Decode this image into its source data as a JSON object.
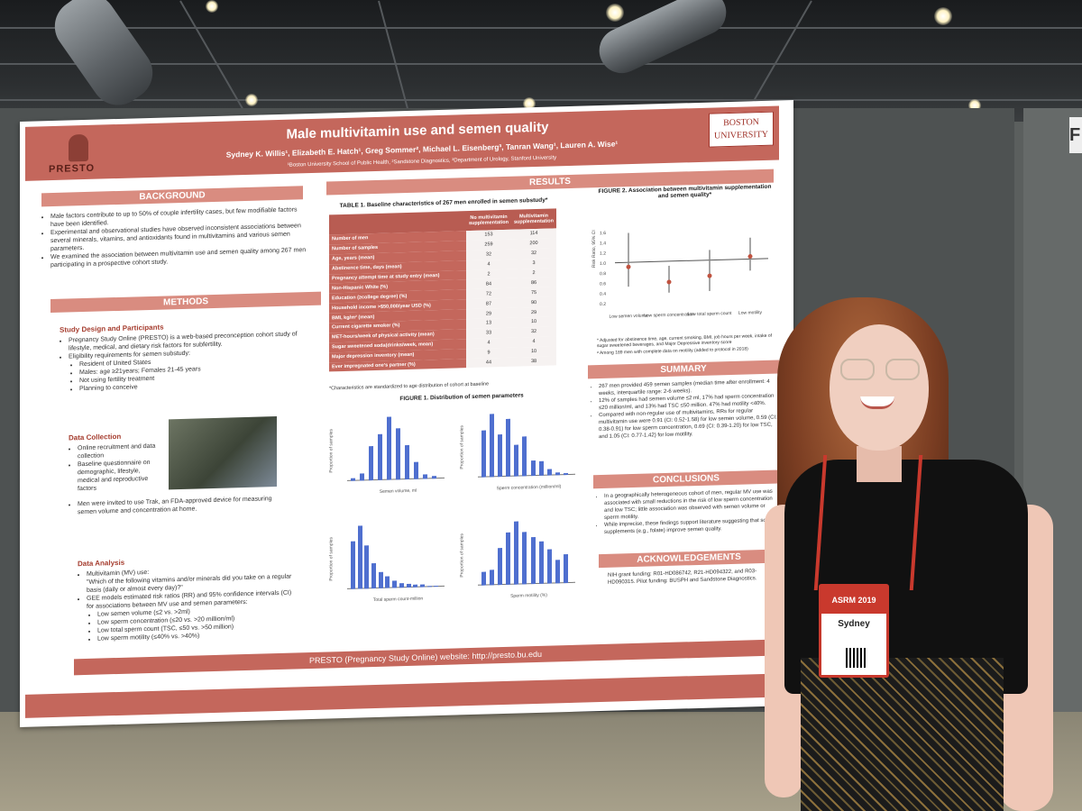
{
  "poster": {
    "title": "Male multivitamin use and semen quality",
    "authors": "Sydney K. Willis¹, Elizabeth E. Hatch¹, Greg Sommer², Michael L. Eisenberg³, Tanran Wang¹, Lauren A. Wise¹",
    "affiliations": "¹Boston University School of Public Health, ²Sandstone Diagnostics, ³Department of Urology, Stanford University",
    "presto_logo": "PRESTO",
    "bu_logo_line1": "BOSTON",
    "bu_logo_line2": "UNIVERSITY",
    "background_title": "BACKGROUND",
    "background_points": [
      "Male factors contribute to up to 50% of couple infertility cases, but few modifiable factors have been identified.",
      "Experimental and observational studies have observed inconsistent associations between several minerals, vitamins, and antioxidants found in multivitamins and various semen parameters.",
      "We examined the association between multivitamin use and semen quality among 267 men participating in a prospective cohort study."
    ],
    "methods_title": "METHODS",
    "study_design_title": "Study Design and Participants",
    "study_design_text": "Pregnancy Study Online (PRESTO) is a web-based preconception cohort study of lifestyle, medical, and dietary risk factors for subfertility.",
    "eligibility_text": "Eligibility requirements for semen substudy:",
    "eligibility_items": [
      "Resident of United States",
      "Males: age ≥21years; Females 21-45 years",
      "Not using fertility treatment",
      "Planning to conceive"
    ],
    "data_collection_title": "Data Collection",
    "data_collection_items": [
      "Online recruitment and data collection",
      "Baseline questionnaire on demographic, lifestyle, medical and reproductive factors",
      "Men were invited to use Trak, an FDA-approved device for measuring semen volume and concentration at home."
    ],
    "data_analysis_title": "Data Analysis",
    "data_analysis_items": [
      "Multivitamin (MV) use:",
      "\"Which of the following vitamins and/or minerals did you take on a regular basis (daily or almost every day)?\"",
      "GEE models estimated risk ratios (RR) and 95% confidence intervals (CI) for associations between MV use and semen parameters:",
      "Low semen volume (≤2 vs. >2ml)",
      "Low sperm concentration (≤20 vs. >20 million/ml)",
      "Low total sperm count (TSC, ≤50 vs. >50 million)",
      "Low sperm motility (≤40% vs. >40%)"
    ],
    "results_title": "RESULTS",
    "table_title": "TABLE 1. Baseline characteristics of 267 men enrolled in semen substudy*",
    "table_header": [
      "",
      "No multivitamin supplementation",
      "Multivitamin supplementation"
    ],
    "table_rows": [
      [
        "Number of men",
        "153",
        "114"
      ],
      [
        "Number of samples",
        "259",
        "200"
      ],
      [
        "Age, years (mean)",
        "32",
        "32"
      ],
      [
        "Abstinence time, days (mean)",
        "4",
        "3"
      ],
      [
        "Pregnancy attempt time at study entry (mean)",
        "2",
        "2"
      ],
      [
        "Non-Hispanic White (%)",
        "84",
        "86"
      ],
      [
        "Education (≥college degree) (%)",
        "72",
        "75"
      ],
      [
        "Household income >$50,000/year USD (%)",
        "87",
        "90"
      ],
      [
        "BMI, kg/m² (mean)",
        "29",
        "29"
      ],
      [
        "Current cigarette smoker (%)",
        "13",
        "10"
      ],
      [
        "MET-hours/week of physical activity (mean)",
        "33",
        "32"
      ],
      [
        "Sugar sweetened soda(drinks/week, mean)",
        "4",
        "4"
      ],
      [
        "Major depression inventory (mean)",
        "9",
        "10"
      ],
      [
        "Ever impregnated one's partner (%)",
        "44",
        "38"
      ]
    ],
    "table_note": "*Characteristics are standardized to age distribution of cohort at baseline",
    "figure1_title": "FIGURE 1. Distribution of semen parameters",
    "hist_xlabels": [
      "Semen volume, ml",
      "Sperm concentration (million/ml)",
      "Total sperm count-million",
      "Sperm motility (%)"
    ],
    "hist_ylabel": "Proportion of samples",
    "figure2_title": "FIGURE 2. Association between multivitamin supplementation and semen quality*",
    "figure2_ylabel": "Risk Ratio, 95% CI",
    "figure2_categories": [
      "Low semen volume",
      "Low sperm concentration",
      "Low total sperm count",
      "Low motility"
    ],
    "figure2_note": "* Adjusted for abstinence time, age, current smoking, BMI, job hours per week, intake of sugar sweetened beverages, and Major Depressive inventory score",
    "figure2_note2": "ᵃ Among 189 men with complete data on motility (added to protocol in 2018)",
    "summary_title": "SUMMARY",
    "summary_points": [
      "267 men provided 459 semen samples (median time after enrollment: 4 weeks, interquartile range: 2-6 weeks).",
      "12% of samples had semen volume ≤2 ml, 17% had sperm concentration ≤20 million/ml, and 13% had TSC ≤50 million. 47% had motility <40%.",
      "Compared with non-regular use of multivitamins, RRs for regular multivitamin use were 0.91 (CI: 0.52-1.58) for low semen volume, 0.59 (CI: 0.38-0.91) for low sperm concentration, 0.69 (CI: 0.39-1.20) for low TSC, and 1.05 (CI: 0.77-1.42) for low motility."
    ],
    "conclusions_title": "CONCLUSIONS",
    "conclusion_points": [
      "In a geographically heterogeneous cohort of men, regular MV use was associated with small reductions in the risk of low sperm concentration and low TSC; little association was observed with semen volume or sperm motility.",
      "While imprecise, these findings support literature suggesting that some supplements (e.g., folate) improve semen quality."
    ],
    "ack_title": "ACKNOWLEDGEMENTS",
    "ack_text": "NIH grant funding: R01-HD086742, R21-HD094322, and R03-HD090315. Pilot funding: BUSPH and Sandstone Diagnostics.",
    "footer_text": "PRESTO (Pregnancy Study Online) website: http://presto.bu.edu"
  },
  "badge": {
    "event": "ASRM 2019",
    "name": "Sydney"
  },
  "booth_letter": "F"
}
